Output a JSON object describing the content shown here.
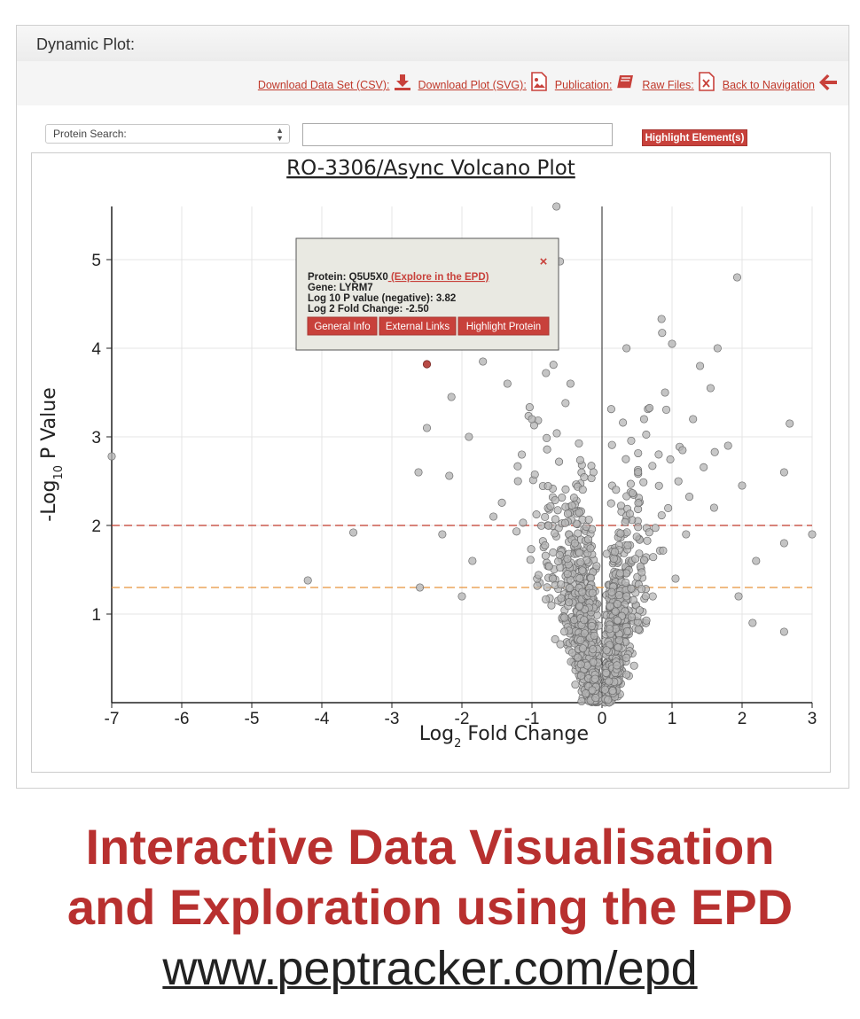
{
  "panel": {
    "title": "Dynamic Plot:"
  },
  "toolbar": {
    "download_csv": "Download Data Set (CSV):",
    "download_svg": "Download Plot (SVG):",
    "publication": "Publication:",
    "raw_files": "Raw Files:",
    "back": "Back to Navigation"
  },
  "search": {
    "select_value": "Protein Search:",
    "input_value": "",
    "highlight_label": "Highlight Element(s)"
  },
  "tooltip": {
    "protein_label": "Protein: Q5U5X0",
    "explore_link": " (Explore in the EPD)",
    "gene": "Gene: LYRM7",
    "pvalue": "Log 10 P value (negative): 3.82",
    "fold": "Log 2 Fold Change: -2.50",
    "close": "×",
    "btn_general": "General Info",
    "btn_external": "External Links",
    "btn_highlight": "Highlight Protein"
  },
  "chart_data": {
    "type": "scatter",
    "title": "RO-3306/Async Volcano Plot",
    "xlabel_main": "Log",
    "xlabel_sub": "2",
    "xlabel_rest": " Fold Change",
    "ylabel_main": "-Log",
    "ylabel_sub": "10",
    "ylabel_rest": " P Value",
    "xlim": [
      -7,
      3
    ],
    "ylim": [
      0,
      5.6
    ],
    "xticks": [
      -7,
      -6,
      -5,
      -4,
      -3,
      -2,
      -1,
      0,
      1,
      2,
      3
    ],
    "yticks": [
      1,
      2,
      3,
      4,
      5
    ],
    "grid": true,
    "thresholds": [
      {
        "y": 2,
        "color": "#c0392b"
      },
      {
        "y": 1.3,
        "color": "#e8923a"
      }
    ],
    "highlighted_point": {
      "x": -2.5,
      "y": 3.82,
      "color": "#b84a45"
    },
    "points": [
      [
        -7.0,
        2.78
      ],
      [
        -4.2,
        1.38
      ],
      [
        -3.55,
        1.92
      ],
      [
        -2.62,
        2.6
      ],
      [
        -2.18,
        2.56
      ],
      [
        -2.28,
        1.9
      ],
      [
        -2.6,
        1.3
      ],
      [
        -0.65,
        5.6
      ],
      [
        -0.6,
        4.98
      ],
      [
        1.93,
        4.8
      ],
      [
        0.85,
        4.33
      ],
      [
        1.0,
        4.05
      ],
      [
        0.35,
        4.0
      ],
      [
        1.65,
        4.0
      ],
      [
        2.68,
        3.15
      ],
      [
        2.6,
        2.6
      ],
      [
        3.0,
        1.9
      ],
      [
        2.6,
        1.8
      ],
      [
        2.6,
        0.8
      ],
      [
        2.15,
        0.9
      ],
      [
        -1.7,
        3.85
      ],
      [
        -2.15,
        3.45
      ],
      [
        -2.5,
        3.1
      ],
      [
        -1.35,
        3.6
      ],
      [
        -1.9,
        3.0
      ],
      [
        -1.55,
        2.1
      ],
      [
        -1.85,
        1.6
      ],
      [
        -2.0,
        1.2
      ],
      [
        -1.2,
        2.5
      ],
      [
        -1.0,
        3.2
      ],
      [
        1.4,
        3.8
      ],
      [
        1.55,
        3.55
      ],
      [
        1.3,
        3.2
      ],
      [
        1.8,
        2.9
      ],
      [
        2.0,
        2.45
      ],
      [
        2.2,
        1.6
      ],
      [
        1.95,
        1.2
      ],
      [
        1.6,
        2.2
      ],
      [
        1.2,
        1.9
      ],
      [
        1.05,
        1.4
      ],
      [
        -0.8,
        3.72
      ],
      [
        -0.45,
        3.6
      ],
      [
        0.9,
        3.5
      ],
      [
        0.6,
        3.2
      ],
      [
        1.15,
        2.85
      ]
    ]
  },
  "footer": {
    "line1": "Interactive Data Visualisation",
    "line2": "and Exploration using the EPD",
    "url": "www.peptracker.com/epd"
  }
}
